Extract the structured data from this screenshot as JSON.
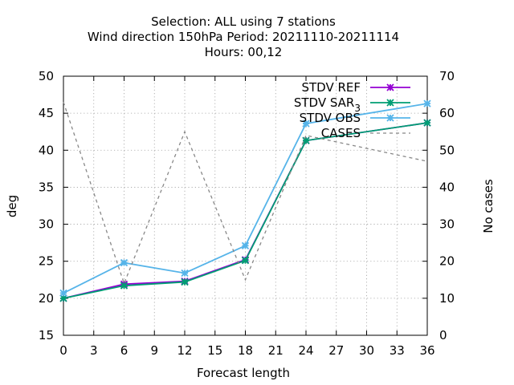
{
  "chart_data": {
    "type": "line",
    "title_lines": [
      "Selection: ALL using     7 stations",
      "Wind direction 150hPa   Period: 20211110-20211114",
      "Hours:  00,12"
    ],
    "xlabel": "Forecast length",
    "ylabel": "deg",
    "y2label": "No cases",
    "xlim": [
      0,
      36
    ],
    "ylim": [
      15,
      50
    ],
    "y2lim": [
      0,
      70
    ],
    "xticks": [
      0,
      3,
      6,
      9,
      12,
      15,
      18,
      21,
      24,
      27,
      30,
      33,
      36
    ],
    "yticks": [
      15,
      20,
      25,
      30,
      35,
      40,
      45,
      50
    ],
    "y2ticks": [
      0,
      10,
      20,
      30,
      40,
      50,
      60,
      70
    ],
    "legend_position": "top-right",
    "series": [
      {
        "name": "STDV REF",
        "color": "#9400d3",
        "axis": "y",
        "style": "solid",
        "marker": "x-star",
        "x": [
          0,
          6,
          12,
          18,
          24,
          36
        ],
        "y": [
          20.0,
          21.9,
          22.3,
          25.2,
          41.3,
          43.7
        ]
      },
      {
        "name": "STDV SAR_3",
        "color": "#009e73",
        "axis": "y",
        "style": "solid",
        "marker": "x-star",
        "x": [
          0,
          6,
          12,
          18,
          24,
          36
        ],
        "y": [
          20.0,
          21.7,
          22.2,
          25.1,
          41.3,
          43.7
        ]
      },
      {
        "name": "STDV OBS",
        "color": "#56b4e9",
        "axis": "y",
        "style": "solid",
        "marker": "x-star",
        "x": [
          0,
          6,
          12,
          18,
          24,
          36
        ],
        "y": [
          20.7,
          24.8,
          23.4,
          27.1,
          43.6,
          46.3
        ]
      },
      {
        "name": "CASES",
        "color": "#888888",
        "axis": "y2",
        "style": "dashed",
        "marker": "none",
        "x": [
          0,
          6,
          12,
          18,
          24,
          36
        ],
        "y": [
          63,
          14,
          55,
          15,
          54,
          47
        ]
      }
    ]
  }
}
